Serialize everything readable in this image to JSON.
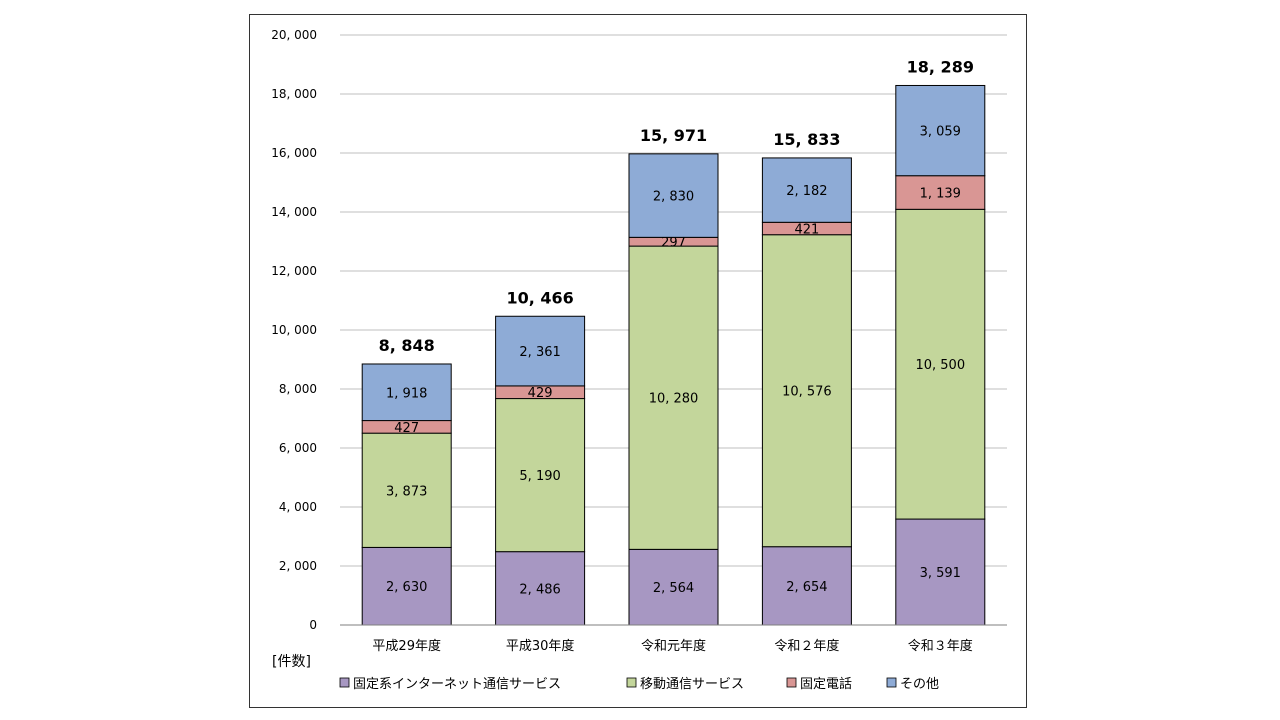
{
  "chart_data": {
    "type": "bar",
    "stacked": true,
    "unit_label": "[件数]",
    "categories": [
      "平成29年度",
      "平成30年度",
      "令和元年度",
      "令和２年度",
      "令和３年度"
    ],
    "series": [
      {
        "name": "固定系インターネット通信サービス",
        "color": "#a797c2",
        "values": [
          2630,
          2486,
          2564,
          2654,
          3591
        ],
        "labels": [
          "2, 630",
          "2, 486",
          "2, 564",
          "2, 654",
          "3, 591"
        ]
      },
      {
        "name": "移動通信サービス",
        "color": "#c3d69b",
        "values": [
          3873,
          5190,
          10280,
          10576,
          10500
        ],
        "labels": [
          "3, 873",
          "5, 190",
          "10, 280",
          "10, 576",
          "10, 500"
        ]
      },
      {
        "name": "固定電話",
        "color": "#d99694",
        "values": [
          427,
          429,
          297,
          421,
          1139
        ],
        "labels": [
          "427",
          "429",
          "297",
          "421",
          "1, 139"
        ]
      },
      {
        "name": "その他",
        "color": "#8eabd6",
        "values": [
          1918,
          2361,
          2830,
          2182,
          3059
        ],
        "labels": [
          "1, 918",
          "2, 361",
          "2, 830",
          "2, 182",
          "3, 059"
        ]
      }
    ],
    "totals": [
      8848,
      10466,
      15971,
      15833,
      18289
    ],
    "total_labels": [
      "8, 848",
      "10, 466",
      "15, 971",
      "15, 833",
      "18, 289"
    ],
    "ylim": [
      0,
      20000
    ],
    "yticks": [
      0,
      2000,
      4000,
      6000,
      8000,
      10000,
      12000,
      14000,
      16000,
      18000,
      20000
    ],
    "ytick_labels": [
      "0",
      "2, 000",
      "4, 000",
      "6, 000",
      "8, 000",
      "10, 000",
      "12, 000",
      "14, 000",
      "16, 000",
      "18, 000",
      "20, 000"
    ],
    "grid": true,
    "legend": "bottom"
  }
}
